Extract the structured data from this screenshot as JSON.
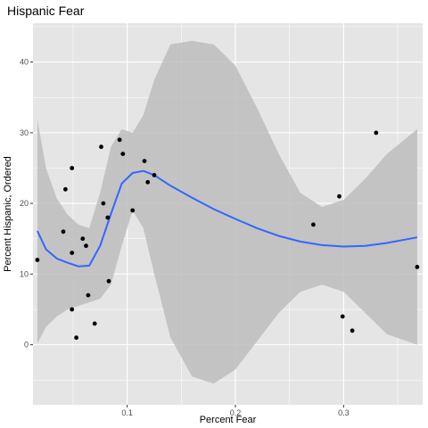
{
  "chart_data": {
    "type": "scatter",
    "title": "Hispanic Fear",
    "xlabel": "Percent Fear",
    "ylabel": "Percent Hispanic, Ordered",
    "xlim": [
      0.013,
      0.373
    ],
    "ylim": [
      -8.5,
      45.5
    ],
    "x_ticks": [
      0.1,
      0.2,
      0.3
    ],
    "x_tick_labels": [
      "0.1",
      "0.2",
      "0.3"
    ],
    "y_ticks": [
      0,
      10,
      20,
      30,
      40
    ],
    "y_tick_labels": [
      "0",
      "10",
      "20",
      "30",
      "40"
    ],
    "grid": true,
    "legend": "none",
    "colors": {
      "panel": "#e5e5e5",
      "grid": "#ffffff",
      "points": "#000000",
      "smooth_line": "#3366ff",
      "ribbon": "#bdbdbd"
    },
    "points": [
      {
        "x": 0.017,
        "y": 12
      },
      {
        "x": 0.041,
        "y": 16
      },
      {
        "x": 0.043,
        "y": 22
      },
      {
        "x": 0.049,
        "y": 13
      },
      {
        "x": 0.049,
        "y": 25
      },
      {
        "x": 0.049,
        "y": 5
      },
      {
        "x": 0.053,
        "y": 1
      },
      {
        "x": 0.059,
        "y": 15
      },
      {
        "x": 0.062,
        "y": 14
      },
      {
        "x": 0.064,
        "y": 7
      },
      {
        "x": 0.07,
        "y": 3
      },
      {
        "x": 0.076,
        "y": 28
      },
      {
        "x": 0.078,
        "y": 20
      },
      {
        "x": 0.082,
        "y": 18
      },
      {
        "x": 0.083,
        "y": 9
      },
      {
        "x": 0.093,
        "y": 29
      },
      {
        "x": 0.096,
        "y": 27
      },
      {
        "x": 0.105,
        "y": 19
      },
      {
        "x": 0.116,
        "y": 26
      },
      {
        "x": 0.119,
        "y": 23
      },
      {
        "x": 0.125,
        "y": 24
      },
      {
        "x": 0.272,
        "y": 17
      },
      {
        "x": 0.296,
        "y": 21
      },
      {
        "x": 0.299,
        "y": 4
      },
      {
        "x": 0.308,
        "y": 2
      },
      {
        "x": 0.33,
        "y": 30
      },
      {
        "x": 0.368,
        "y": 11
      }
    ],
    "smooth": [
      {
        "x": 0.017,
        "y": 16.1,
        "lower": 0.2,
        "upper": 31.9
      },
      {
        "x": 0.025,
        "y": 13.5,
        "lower": 2.5,
        "upper": 25.0
      },
      {
        "x": 0.035,
        "y": 12.2,
        "lower": 4.0,
        "upper": 20.7
      },
      {
        "x": 0.045,
        "y": 11.6,
        "lower": 5.0,
        "upper": 18.4
      },
      {
        "x": 0.055,
        "y": 11.1,
        "lower": 5.5,
        "upper": 17.0
      },
      {
        "x": 0.065,
        "y": 11.2,
        "lower": 6.0,
        "upper": 16.5
      },
      {
        "x": 0.075,
        "y": 14.0,
        "lower": 6.5,
        "upper": 21.5
      },
      {
        "x": 0.085,
        "y": 18.5,
        "lower": 8.5,
        "upper": 28.0
      },
      {
        "x": 0.095,
        "y": 22.8,
        "lower": 14.0,
        "upper": 30.5
      },
      {
        "x": 0.105,
        "y": 24.3,
        "lower": 19.0,
        "upper": 30.0
      },
      {
        "x": 0.115,
        "y": 24.6,
        "lower": 16.5,
        "upper": 32.5
      },
      {
        "x": 0.125,
        "y": 24.0,
        "lower": 10.0,
        "upper": 37.5
      },
      {
        "x": 0.14,
        "y": 22.5,
        "lower": 1.0,
        "upper": 42.5
      },
      {
        "x": 0.16,
        "y": 20.8,
        "lower": -4.5,
        "upper": 43.0
      },
      {
        "x": 0.18,
        "y": 19.2,
        "lower": -5.5,
        "upper": 42.5
      },
      {
        "x": 0.2,
        "y": 17.8,
        "lower": -3.5,
        "upper": 39.5
      },
      {
        "x": 0.22,
        "y": 16.5,
        "lower": 0.5,
        "upper": 33.5
      },
      {
        "x": 0.24,
        "y": 15.4,
        "lower": 4.5,
        "upper": 27.0
      },
      {
        "x": 0.26,
        "y": 14.6,
        "lower": 7.5,
        "upper": 21.5
      },
      {
        "x": 0.28,
        "y": 14.1,
        "lower": 8.5,
        "upper": 19.5
      },
      {
        "x": 0.3,
        "y": 13.9,
        "lower": 7.5,
        "upper": 20.5
      },
      {
        "x": 0.32,
        "y": 14.0,
        "lower": 4.5,
        "upper": 23.5
      },
      {
        "x": 0.34,
        "y": 14.4,
        "lower": 1.5,
        "upper": 27.0
      },
      {
        "x": 0.368,
        "y": 15.2,
        "lower": 0.0,
        "upper": 30.5
      }
    ]
  }
}
